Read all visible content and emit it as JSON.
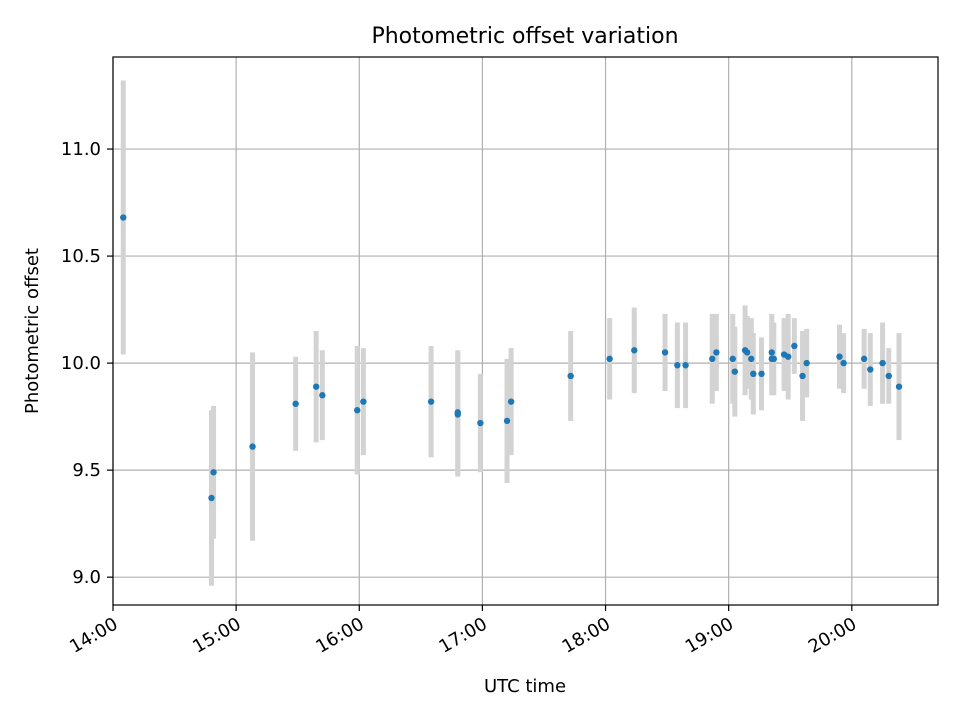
{
  "chart_data": {
    "type": "scatter",
    "title": "Photometric offset variation",
    "xlabel": "UTC time",
    "ylabel": "Photometric offset",
    "x_axis_type": "time",
    "xlim": [
      "14:00",
      "20:42"
    ],
    "ylim": [
      8.87,
      11.43
    ],
    "x_ticks": [
      "14:00",
      "15:00",
      "16:00",
      "17:00",
      "18:00",
      "19:00",
      "20:00"
    ],
    "y_ticks": [
      "9.0",
      "9.5",
      "10.0",
      "10.5",
      "11.0"
    ],
    "grid": true,
    "colors": {
      "points": "#1f77b4",
      "error_bars": "#d3d3d3",
      "grid": "#b0b0b0",
      "axes": "#000000"
    },
    "series": [
      {
        "x": [
          "14:05",
          "14:48",
          "14:49",
          "15:08",
          "15:29",
          "15:39",
          "15:42",
          "15:59",
          "16:02",
          "16:35",
          "16:48",
          "16:48",
          "16:59",
          "17:12",
          "17:14",
          "17:43",
          "18:02",
          "18:14",
          "18:29",
          "18:35",
          "18:39",
          "18:52",
          "18:54",
          "19:02",
          "19:03",
          "19:08",
          "19:09",
          "19:11",
          "19:12",
          "19:16",
          "19:21",
          "19:21",
          "19:22",
          "19:27",
          "19:29",
          "19:32",
          "19:36",
          "19:38",
          "19:54",
          "19:56",
          "20:06",
          "20:09",
          "20:15",
          "20:18",
          "20:23"
        ],
        "y": [
          10.68,
          9.37,
          9.49,
          9.61,
          9.81,
          9.89,
          9.85,
          9.78,
          9.82,
          9.82,
          9.77,
          9.76,
          9.72,
          9.73,
          9.82,
          9.94,
          10.02,
          10.06,
          10.05,
          9.99,
          9.99,
          10.02,
          10.05,
          10.02,
          9.96,
          10.06,
          10.05,
          10.02,
          9.95,
          9.95,
          10.02,
          10.05,
          10.02,
          10.04,
          10.03,
          10.08,
          9.94,
          10.0,
          10.03,
          10.0,
          10.02,
          9.97,
          10.0,
          9.94,
          9.89
        ],
        "yerr": [
          0.64,
          0.41,
          0.31,
          0.44,
          0.22,
          0.26,
          0.21,
          0.3,
          0.25,
          0.26,
          0.29,
          0.29,
          0.23,
          0.29,
          0.25,
          0.21,
          0.19,
          0.2,
          0.18,
          0.2,
          0.2,
          0.21,
          0.18,
          0.21,
          0.21,
          0.21,
          0.17,
          0.19,
          0.19,
          0.17,
          0.17,
          0.18,
          0.17,
          0.17,
          0.2,
          0.13,
          0.21,
          0.16,
          0.15,
          0.14,
          0.14,
          0.17,
          0.19,
          0.13,
          0.25
        ]
      }
    ]
  }
}
